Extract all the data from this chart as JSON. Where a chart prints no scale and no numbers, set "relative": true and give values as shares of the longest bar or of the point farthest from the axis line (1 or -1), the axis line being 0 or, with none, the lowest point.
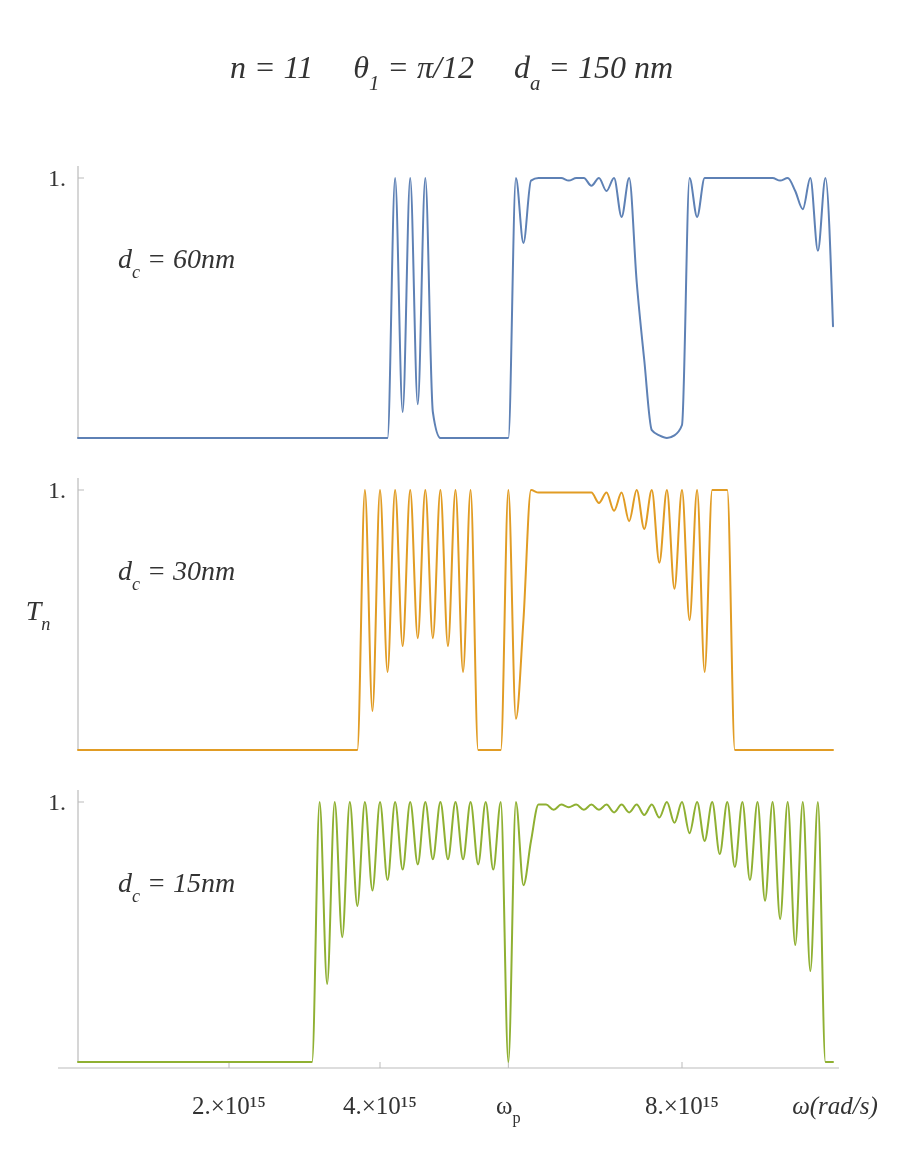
{
  "chart_data": [
    {
      "type": "line",
      "title": "n = 11     θ$_{1}$ = π/12     d$_{a}$ = 150 nm",
      "relative": true,
      "tick_labels": false,
      "color": "#5e81b5",
      "categories": [
        null,
        null,
        null,
        null,
        null,
        null,
        null,
        null,
        null,
        null,
        null,
        null,
        null,
        null,
        null,
        null,
        null,
        null,
        null,
        null,
        null,
        null,
        null,
        null,
        null,
        null,
        null,
        null,
        null,
        null,
        null,
        null,
        null,
        null,
        null,
        null,
        null,
        null,
        null,
        null,
        null,
        null,
        null,
        null,
        null,
        null,
        null,
        null,
        null,
        null,
        null,
        null,
        null,
        null,
        null,
        null,
        null,
        null,
        null,
        null,
        null,
        null,
        null,
        null,
        null,
        null,
        null,
        null,
        null,
        null,
        null,
        null,
        null,
        null,
        null,
        null,
        null,
        null,
        null,
        null,
        null,
        null,
        null,
        null,
        null,
        null,
        null,
        null,
        null,
        null,
        null,
        null,
        null,
        null,
        null,
        null,
        null,
        null,
        null,
        null,
        null
      ],
      "values": [
        0,
        0,
        0,
        0,
        0,
        0,
        0,
        0,
        0,
        0,
        0,
        0,
        0,
        0,
        0,
        0,
        0,
        0,
        0,
        0,
        0,
        0,
        0,
        0,
        0,
        0,
        0,
        0,
        0,
        0,
        0,
        0,
        0,
        0,
        0,
        0,
        0,
        0,
        0,
        0,
        0,
        0,
        1,
        0.1,
        1,
        0.13,
        1,
        0.1,
        0,
        0,
        0,
        0,
        0,
        0,
        0,
        0,
        0,
        0,
        1,
        0.75,
        0.99,
        1,
        1,
        1,
        1,
        0.99,
        1,
        1,
        0.97,
        1,
        0.95,
        1,
        0.85,
        1,
        0.6,
        0.3,
        0.03,
        0.01,
        0,
        0.01,
        0.05,
        1,
        0.85,
        1,
        1,
        1,
        1,
        1,
        1,
        1,
        1,
        1,
        1,
        0.99,
        1,
        0.95,
        0.88,
        1,
        0.72,
        1,
        0.43
      ],
      "annotations": [
        "1.",
        "d$_{c}$ = 60nm"
      ]
    },
    {
      "type": "line",
      "ylabel": "T$_{n}$",
      "relative": true,
      "tick_labels": false,
      "color": "#e19c24",
      "categories": [
        null,
        null,
        null,
        null,
        null,
        null,
        null,
        null,
        null,
        null,
        null,
        null,
        null,
        null,
        null,
        null,
        null,
        null,
        null,
        null,
        null,
        null,
        null,
        null,
        null,
        null,
        null,
        null,
        null,
        null,
        null,
        null,
        null,
        null,
        null,
        null,
        null,
        null,
        null,
        null,
        null,
        null,
        null,
        null,
        null,
        null,
        null,
        null,
        null,
        null,
        null,
        null,
        null,
        null,
        null,
        null,
        null,
        null,
        null,
        null,
        null,
        null,
        null,
        null,
        null,
        null,
        null,
        null,
        null,
        null,
        null,
        null,
        null,
        null,
        null,
        null,
        null,
        null,
        null,
        null,
        null,
        null,
        null,
        null,
        null,
        null,
        null,
        null,
        null,
        null,
        null,
        null,
        null,
        null,
        null,
        null,
        null,
        null,
        null,
        null,
        null
      ],
      "values": [
        0,
        0,
        0,
        0,
        0,
        0,
        0,
        0,
        0,
        0,
        0,
        0,
        0,
        0,
        0,
        0,
        0,
        0,
        0,
        0,
        0,
        0,
        0,
        0,
        0,
        0,
        0,
        0,
        0,
        0,
        0,
        0,
        0,
        0,
        0,
        0,
        0,
        0,
        1,
        0.15,
        1,
        0.3,
        1,
        0.4,
        1,
        0.43,
        1,
        0.43,
        1,
        0.4,
        1,
        0.3,
        1,
        0,
        0,
        0,
        0,
        1,
        0.12,
        0.5,
        1,
        0.99,
        0.99,
        0.99,
        0.99,
        0.99,
        0.99,
        0.99,
        0.99,
        0.95,
        0.99,
        0.92,
        0.99,
        0.88,
        1,
        0.85,
        1,
        0.72,
        1,
        0.62,
        1,
        0.5,
        1,
        0.3,
        1,
        1,
        1,
        0,
        0,
        0,
        0,
        0,
        0,
        0,
        0,
        0,
        0,
        0,
        0,
        0,
        0
      ],
      "annotations": [
        "1.",
        "d$_{c}$ = 30nm"
      ]
    },
    {
      "type": "line",
      "xlabel": "ω(rad/s)",
      "relative": true,
      "color": "#8fb032",
      "categories": [
        null,
        null,
        null,
        null,
        null,
        null,
        null,
        null,
        null,
        null,
        null,
        null,
        null,
        null,
        null,
        null,
        null,
        null,
        null,
        null,
        "2.×10¹⁵",
        null,
        null,
        null,
        null,
        null,
        null,
        null,
        null,
        null,
        null,
        null,
        null,
        null,
        null,
        null,
        null,
        null,
        null,
        null,
        "4.×10¹⁵",
        null,
        null,
        null,
        null,
        null,
        null,
        null,
        null,
        null,
        null,
        null,
        null,
        null,
        null,
        null,
        null,
        "ω$_{p}$",
        null,
        null,
        null,
        null,
        null,
        null,
        null,
        null,
        null,
        null,
        null,
        null,
        null,
        null,
        null,
        null,
        null,
        null,
        null,
        null,
        null,
        null,
        "8.×10¹⁵",
        null,
        null,
        null,
        null,
        null,
        null,
        null,
        null,
        null,
        null,
        null,
        null,
        null,
        null,
        null,
        null,
        null,
        null,
        null,
        null
      ],
      "values": [
        0,
        0,
        0,
        0,
        0,
        0,
        0,
        0,
        0,
        0,
        0,
        0,
        0,
        0,
        0,
        0,
        0,
        0,
        0,
        0,
        0,
        0,
        0,
        0,
        0,
        0,
        0,
        0,
        0,
        0,
        0,
        0,
        1,
        0.3,
        1,
        0.48,
        1,
        0.6,
        1,
        0.66,
        1,
        0.7,
        1,
        0.74,
        1,
        0.76,
        1,
        0.78,
        1,
        0.78,
        1,
        0.78,
        1,
        0.76,
        1,
        0.74,
        1,
        0,
        1,
        0.68,
        0.85,
        0.99,
        0.99,
        0.97,
        0.99,
        0.98,
        0.99,
        0.97,
        0.99,
        0.97,
        0.99,
        0.96,
        0.99,
        0.96,
        0.99,
        0.95,
        0.99,
        0.94,
        1,
        0.92,
        1,
        0.88,
        1,
        0.85,
        1,
        0.8,
        1,
        0.75,
        1,
        0.7,
        1,
        0.62,
        1,
        0.55,
        1,
        0.45,
        1,
        0.35,
        1,
        0,
        0
      ],
      "annotations": [
        "1.",
        "d$_{c}$ = 15nm"
      ]
    }
  ]
}
